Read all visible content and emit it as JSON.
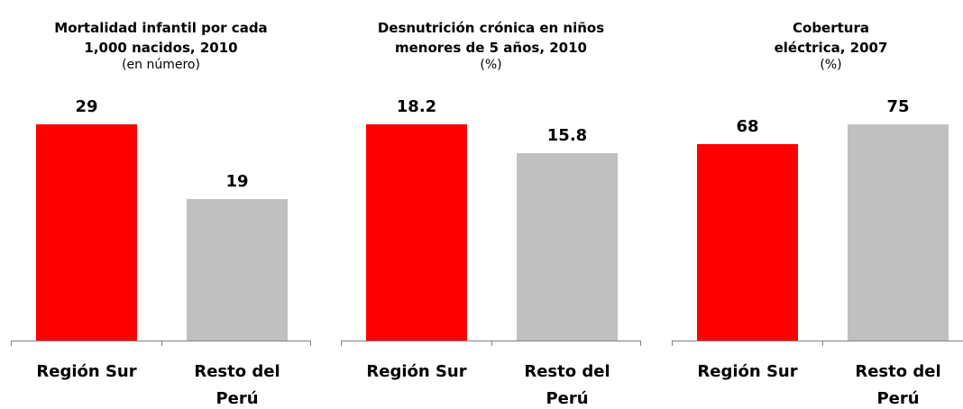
{
  "chart_data": [
    {
      "type": "bar",
      "title": [
        "Mortalidad infantil por cada",
        "1,000 nacidos, 2010"
      ],
      "subtitle": "(en número)",
      "categories": [
        "Región Sur",
        "Resto del Perú"
      ],
      "values": [
        29,
        19
      ],
      "colors": [
        "#ff0000",
        "#c0c0c0"
      ]
    },
    {
      "type": "bar",
      "title": [
        "Desnutrición crónica en niños",
        "menores de 5 años, 2010"
      ],
      "subtitle": "(%)",
      "categories": [
        "Región Sur",
        "Resto del Perú"
      ],
      "values": [
        18.2,
        15.8
      ],
      "colors": [
        "#ff0000",
        "#c0c0c0"
      ]
    },
    {
      "type": "bar",
      "title": [
        "Cobertura",
        "eléctrica, 2007"
      ],
      "subtitle": "(%)",
      "categories": [
        "Región Sur",
        "Resto del Perú"
      ],
      "values": [
        68,
        75
      ],
      "colors": [
        "#ff0000",
        "#c0c0c0"
      ]
    }
  ]
}
